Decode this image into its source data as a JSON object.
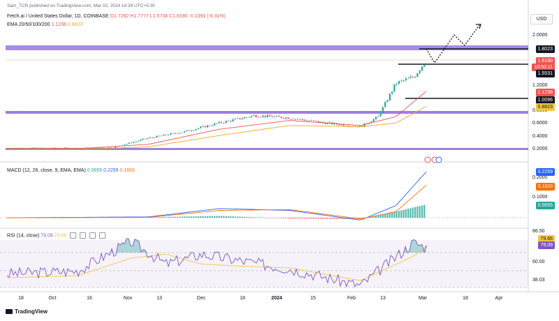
{
  "publisher_line": "Sam_TCR published on TradingView.com, Mar 02, 2024 18:39 UTC+5:30",
  "symbol": {
    "title": "Fetch.ai / United States Dollar, 1D, COINBASE",
    "open": "O1.7282",
    "high": "H1.7777",
    "low": "L1.5734",
    "close": "C1.6190",
    "change": "-0.1091 (-6.31%)"
  },
  "ema_legend": {
    "label": "EMA 20/50/100/200",
    "v1": "1.1238",
    "v2": "0.8823"
  },
  "currency": "USD",
  "price_tags": {
    "resistance": "1.8023",
    "last_price": "1.6190",
    "countdown": "10:50:11",
    "support_1": "1.5531",
    "ema_fast": "1.1238",
    "support_2": "1.0096",
    "ema_slow": "0.8823"
  },
  "macd_legend": {
    "label": "MACD (12, 26, close, 9, EMA, EMA)",
    "v1": "0.0655",
    "v2": "0.2259",
    "v3": "0.1603"
  },
  "macd_tags": {
    "macd": "0.2259",
    "signal": "0.1603",
    "hist": "0.0655"
  },
  "rsi_legend": {
    "label": "RSI (14, close)",
    "v1": "79.09",
    "v2": "79.66"
  },
  "rsi_tags": {
    "ma": "79.66",
    "rsi": "79.09"
  },
  "footer_logo": "TradingView",
  "colors": {
    "up": "#26a69a",
    "down": "#ef5350",
    "ema_fast": "#ef5350",
    "ema_slow": "#f5a623",
    "zone": "#9c7fe0",
    "macd_line": "#2962ff",
    "signal_line": "#ff6d00",
    "rsi_line": "#7e57c2",
    "rsi_ma": "#f5c542",
    "tag_blue": "#2962ff",
    "tag_orange": "#ff6d00",
    "tag_green": "#26a69a",
    "tag_red": "#ef5350",
    "tag_black": "#131722",
    "tag_yellow": "#f5c542"
  },
  "chart_data": [
    {
      "type": "line",
      "title": "Fetch.ai / United States Dollar, 1D, COINBASE",
      "ylabel": "USD",
      "yticks": [
        "2.0000",
        "1.2000",
        "0.8000",
        "0.6000",
        "0.4000",
        "0.2000"
      ],
      "xticks": [
        "18",
        "Oct",
        "16",
        "Nov",
        "13",
        "Dec",
        "18",
        "2024",
        "15",
        "Feb",
        "13",
        "Mar",
        "18",
        "Apr"
      ],
      "ylim": [
        0.15,
        2.3
      ],
      "series": [
        {
          "name": "Price",
          "x": [
            "Sep 18",
            "Oct 2",
            "Oct 16",
            "Oct 30",
            "Nov 13",
            "Nov 27",
            "Dec 11",
            "Dec 25",
            "Jan 8",
            "Jan 22",
            "Feb 5",
            "Feb 12",
            "Feb 19",
            "Feb 26",
            "Mar 2"
          ],
          "values": [
            0.22,
            0.22,
            0.22,
            0.23,
            0.38,
            0.48,
            0.62,
            0.74,
            0.7,
            0.62,
            0.56,
            0.72,
            1.25,
            1.35,
            1.62
          ]
        },
        {
          "name": "EMA",
          "x": [
            "Sep 18",
            "Oct 16",
            "Nov 13",
            "Dec 11",
            "Jan 8",
            "Feb 5",
            "Feb 19",
            "Mar 2"
          ],
          "values": [
            0.21,
            0.21,
            0.28,
            0.52,
            0.66,
            0.58,
            0.72,
            1.1238
          ]
        },
        {
          "name": "EMA",
          "x": [
            "Sep 18",
            "Oct 16",
            "Nov 13",
            "Dec 11",
            "Jan 8",
            "Feb 5",
            "Feb 19",
            "Mar 2"
          ],
          "values": [
            0.2,
            0.2,
            0.24,
            0.42,
            0.58,
            0.56,
            0.62,
            0.8823
          ]
        }
      ],
      "levels": [
        1.8023,
        1.5531,
        1.0096
      ]
    },
    {
      "type": "line",
      "title": "MACD (12, 26, close, 9, EMA, EMA)",
      "ylim": [
        -0.03,
        0.24
      ],
      "yticks": [
        "0.2000",
        "0.1000"
      ],
      "series": [
        {
          "name": "MACD",
          "x": [
            "Sep 18",
            "Nov 13",
            "Dec 11",
            "Jan 8",
            "Feb 5",
            "Feb 19",
            "Mar 2"
          ],
          "values": [
            0.0,
            0.004,
            0.045,
            0.036,
            -0.012,
            0.06,
            0.2259
          ]
        },
        {
          "name": "Signal",
          "x": [
            "Sep 18",
            "Nov 13",
            "Dec 11",
            "Jan 8",
            "Feb 5",
            "Feb 19",
            "Mar 2"
          ],
          "values": [
            0.0,
            0.002,
            0.036,
            0.04,
            -0.006,
            0.03,
            0.1603
          ]
        }
      ]
    },
    {
      "type": "line",
      "title": "RSI (14, close)",
      "ylim": [
        20,
        95
      ],
      "yticks": [
        "86.50",
        "60.00",
        "38.03"
      ],
      "series": [
        {
          "name": "RSI",
          "x": [
            "Sep 18",
            "Oct 16",
            "Nov 6",
            "Nov 20",
            "Dec 4",
            "Dec 18",
            "Jan 8",
            "Feb 5",
            "Feb 26",
            "Mar 2"
          ],
          "values": [
            52,
            55,
            85,
            62,
            72,
            66,
            57,
            40,
            84,
            79.09
          ]
        },
        {
          "name": "RSI MA",
          "x": [
            "Sep 18",
            "Oct 16",
            "Nov 6",
            "Nov 20",
            "Dec 4",
            "Dec 18",
            "Jan 8",
            "Feb 5",
            "Feb 26",
            "Mar 2"
          ],
          "values": [
            48,
            50,
            68,
            72,
            62,
            60,
            58,
            45,
            70,
            79.66
          ]
        }
      ]
    }
  ]
}
